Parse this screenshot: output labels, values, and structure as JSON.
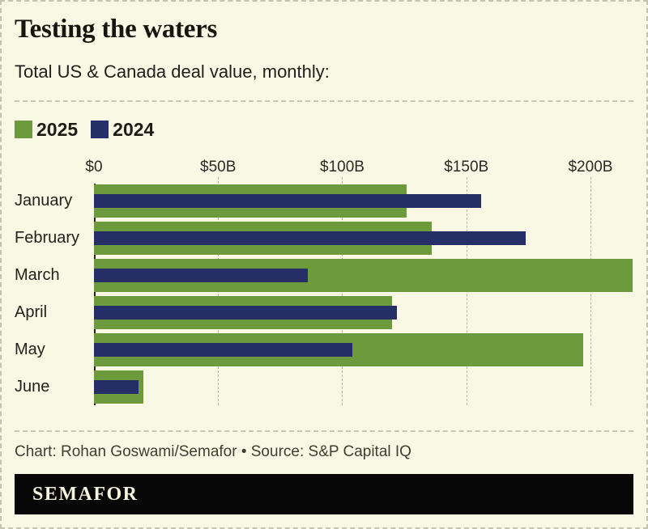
{
  "header": {
    "title": "Testing the waters",
    "subtitle": "Total US & Canada deal value, monthly:"
  },
  "legend": [
    {
      "label": "2025",
      "color": "#6e9a3e"
    },
    {
      "label": "2024",
      "color": "#262e67"
    }
  ],
  "chart_data": {
    "type": "bar",
    "orientation": "horizontal",
    "title": "Testing the waters",
    "subtitle": "Total US & Canada deal value, monthly:",
    "unit": "USD billions",
    "categories": [
      "January",
      "February",
      "March",
      "April",
      "May",
      "June"
    ],
    "series": [
      {
        "name": "2025",
        "color": "#6e9a3e",
        "values": [
          126,
          136,
          217,
          120,
          197,
          20
        ]
      },
      {
        "name": "2024",
        "color": "#262e67",
        "values": [
          156,
          174,
          86,
          122,
          104,
          18
        ]
      }
    ],
    "x_ticks": [
      "$0",
      "$50B",
      "$100B",
      "$150B",
      "$200B"
    ],
    "x_tick_values": [
      0,
      50,
      100,
      150,
      200
    ],
    "xlim": [
      0,
      217.3
    ],
    "grid": "dashed-vertical",
    "legend_position": "top-left"
  },
  "footer": {
    "credit": "Chart: Rohan Goswami/Semafor • Source: S&P Capital IQ",
    "brand": "SEMAFOR"
  },
  "colors": {
    "background": "#f9f8e4",
    "bar_2025": "#6e9a3e",
    "bar_2024": "#262e67",
    "axis_line": "#22221b",
    "gridline": "#b4b4a5",
    "brand_bar": "#070707",
    "brand_text": "#f7f4dd"
  }
}
